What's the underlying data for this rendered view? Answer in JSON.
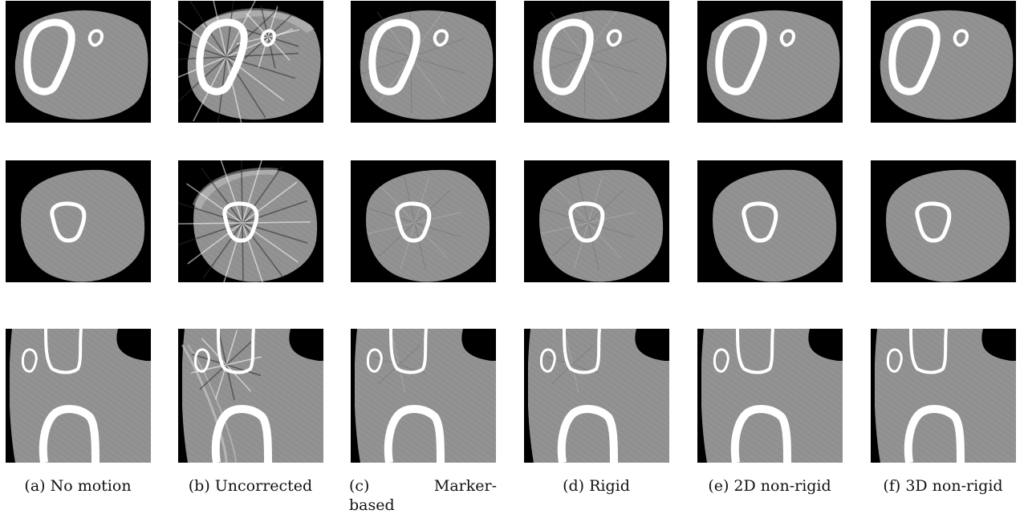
{
  "columns": [
    {
      "key": "a",
      "caption": "(a) No motion",
      "severity": 0
    },
    {
      "key": "b",
      "caption": "(b) Uncorrected",
      "severity": 3
    },
    {
      "key": "c",
      "caption_parts": [
        "(c)",
        "Marker-",
        "based"
      ],
      "severity": 1
    },
    {
      "key": "d",
      "caption": "(d) Rigid",
      "severity": 1
    },
    {
      "key": "e",
      "caption": "(e) 2D non-rigid",
      "severity": 0
    },
    {
      "key": "f",
      "caption": "(f) 3D non-rigid",
      "severity": 0
    }
  ],
  "rows": [
    {
      "key": "axial-upper-slice"
    },
    {
      "key": "axial-lower-slice"
    },
    {
      "key": "sagittal-slice"
    }
  ],
  "colors": {
    "background": "#000000",
    "tissue": "#8f8f8f",
    "bone": "#ffffff",
    "caption_text": "#111111"
  }
}
